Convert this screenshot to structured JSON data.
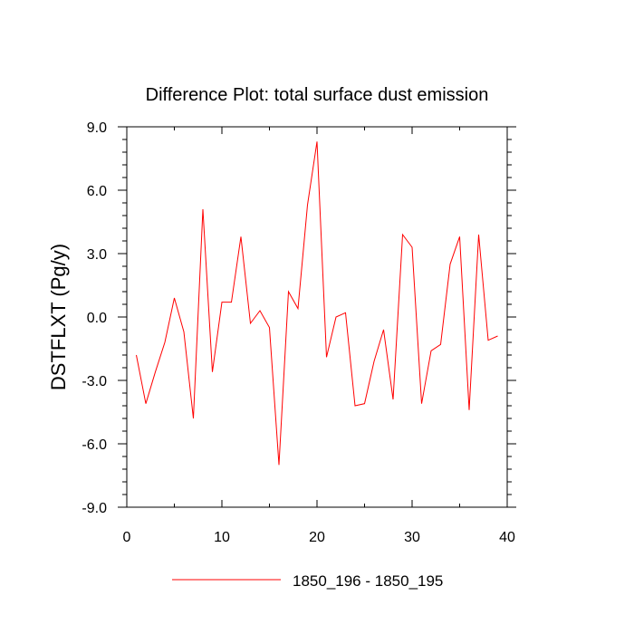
{
  "chart_data": {
    "type": "line",
    "title": "Difference Plot: total surface dust emission",
    "xlabel": "",
    "ylabel": "DSTFLXT  (Pg/y)",
    "xlim": [
      0,
      40
    ],
    "ylim": [
      -9.0,
      9.0
    ],
    "xticks": [
      0,
      10,
      20,
      30,
      40
    ],
    "xtick_labels": [
      "0",
      "10",
      "20",
      "30",
      "40"
    ],
    "yticks": [
      -9.0,
      -6.0,
      -3.0,
      0.0,
      3.0,
      6.0,
      9.0
    ],
    "ytick_labels": [
      "-9.0",
      "-6.0",
      "-3.0",
      "0.0",
      "3.0",
      "6.0",
      "9.0"
    ],
    "grid": false,
    "legend_position": "bottom-center",
    "series": [
      {
        "name": "1850_196 - 1850_195",
        "color": "#ff0000",
        "x": [
          1,
          2,
          3,
          4,
          5,
          6,
          7,
          8,
          9,
          10,
          11,
          12,
          13,
          14,
          15,
          16,
          17,
          18,
          19,
          20,
          21,
          22,
          23,
          24,
          25,
          26,
          27,
          28,
          29,
          30,
          31,
          32,
          33,
          34,
          35,
          36,
          37,
          38,
          39
        ],
        "values": [
          -1.8,
          -4.1,
          -2.6,
          -1.2,
          0.9,
          -0.7,
          -4.8,
          5.1,
          -2.6,
          0.7,
          0.7,
          3.8,
          -0.3,
          0.3,
          -0.5,
          -7.0,
          1.2,
          0.4,
          5.3,
          8.3,
          -1.9,
          0.0,
          0.2,
          -4.2,
          -4.1,
          -2.1,
          -0.6,
          -3.9,
          3.9,
          3.3,
          -4.1,
          -1.6,
          -1.3,
          2.5,
          3.8,
          -4.4,
          3.9,
          -1.1,
          -0.9
        ]
      }
    ]
  }
}
